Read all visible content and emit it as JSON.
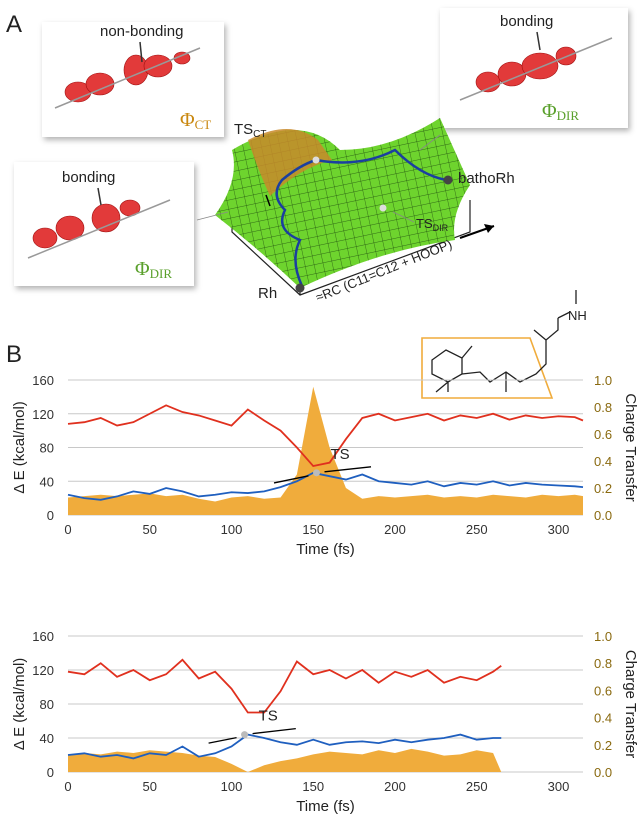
{
  "figure": {
    "panel_a": {
      "label": "A",
      "orbital_ct_note": "non-bonding",
      "orbital_ct_symbol": "Φ",
      "orbital_ct_sub": "CT",
      "orbital_dir_note_right": "bonding",
      "orbital_dir_symbol_right": "Φ",
      "orbital_dir_sub_right": "DIR",
      "orbital_dir_note_left": "bonding",
      "orbital_dir_symbol_left": "Φ",
      "orbital_dir_sub_left": "DIR",
      "ts_ct": "TS",
      "ts_ct_sub": "CT",
      "product": "bathoRh",
      "ts_dir": "TS",
      "ts_dir_sub": "DIR",
      "reactant": "Rh",
      "coordinate": "≈RC (C11=C12 + HOOP)"
    },
    "panel_b": {
      "label": "B",
      "molecule_group": "NH"
    }
  },
  "chart_data": [
    {
      "type": "line",
      "xlabel": "Time (fs)",
      "ylabel": "Δ E (kcal/mol)",
      "y2label": "Charge Transfer",
      "annotation": "TS",
      "x": [
        0,
        10,
        20,
        30,
        40,
        50,
        60,
        70,
        80,
        90,
        100,
        110,
        120,
        130,
        140,
        150,
        160,
        170,
        180,
        190,
        200,
        210,
        220,
        230,
        240,
        250,
        260,
        270,
        280,
        290,
        300,
        310,
        315
      ],
      "xlim": [
        0,
        315
      ],
      "xticks": [
        0,
        50,
        100,
        150,
        200,
        250,
        300
      ],
      "ylim": [
        0,
        160
      ],
      "yticks": [
        0,
        40,
        80,
        120,
        160
      ],
      "y2lim": [
        0,
        1
      ],
      "y2ticks": [
        {
          "value": 0,
          "label": "0.0"
        },
        {
          "value": 0.2,
          "label": "0.2"
        },
        {
          "value": 0.4,
          "label": "0.4"
        },
        {
          "value": 0.6,
          "label": "0.6"
        },
        {
          "value": 0.8,
          "label": "0.8"
        },
        {
          "value": 1,
          "label": "1.0"
        }
      ],
      "grid": true,
      "series": [
        {
          "color": "#f0ac3c",
          "axis": "y2",
          "area": true,
          "values": [
            0.13,
            0.14,
            0.15,
            0.14,
            0.15,
            0.16,
            0.14,
            0.15,
            0.12,
            0.1,
            0.13,
            0.14,
            0.12,
            0.13,
            0.3,
            0.95,
            0.5,
            0.2,
            0.12,
            0.14,
            0.13,
            0.14,
            0.15,
            0.13,
            0.14,
            0.13,
            0.15,
            0.14,
            0.13,
            0.15,
            0.14,
            0.15,
            0.14
          ]
        },
        {
          "color": "#e0301e",
          "values": [
            108,
            110,
            115,
            106,
            110,
            120,
            130,
            122,
            118,
            112,
            106,
            125,
            112,
            100,
            80,
            58,
            62,
            90,
            115,
            120,
            112,
            116,
            120,
            112,
            118,
            115,
            120,
            113,
            118,
            115,
            117,
            116,
            112
          ]
        },
        {
          "color": "#1f5fbf",
          "values": [
            24,
            20,
            18,
            22,
            28,
            25,
            32,
            28,
            22,
            24,
            27,
            26,
            28,
            33,
            40,
            50,
            46,
            42,
            48,
            40,
            38,
            36,
            40,
            34,
            38,
            36,
            40,
            35,
            38,
            36,
            35,
            34,
            33
          ]
        }
      ]
    },
    {
      "type": "line",
      "xlabel": "Time (fs)",
      "ylabel": "Δ E (kcal/mol)",
      "y2label": "Charge Transfer",
      "annotation": "TS",
      "x": [
        0,
        10,
        20,
        30,
        40,
        50,
        60,
        70,
        80,
        90,
        100,
        110,
        120,
        130,
        140,
        150,
        160,
        170,
        180,
        190,
        200,
        210,
        220,
        230,
        240,
        250,
        260,
        265
      ],
      "xlim": [
        0,
        315
      ],
      "xticks": [
        0,
        50,
        100,
        150,
        200,
        250,
        300
      ],
      "ylim": [
        0,
        160
      ],
      "yticks": [
        0,
        40,
        80,
        120,
        160
      ],
      "y2lim": [
        0,
        1
      ],
      "y2ticks": [
        {
          "value": 0,
          "label": "0.0"
        },
        {
          "value": 0.2,
          "label": "0.2"
        },
        {
          "value": 0.4,
          "label": "0.4"
        },
        {
          "value": 0.6,
          "label": "0.6"
        },
        {
          "value": 0.8,
          "label": "0.8"
        },
        {
          "value": 1,
          "label": "1.0"
        }
      ],
      "grid": true,
      "series": [
        {
          "color": "#f0ac3c",
          "axis": "y2",
          "area": true,
          "values": [
            0.13,
            0.14,
            0.13,
            0.15,
            0.14,
            0.16,
            0.15,
            0.14,
            0.12,
            0.11,
            0.06,
            0,
            0.05,
            0.08,
            0.1,
            0.13,
            0.15,
            0.14,
            0.13,
            0.16,
            0.14,
            0.17,
            0.15,
            0.12,
            0.13,
            0.16,
            0.14,
            0
          ]
        },
        {
          "color": "#e0301e",
          "values": [
            118,
            115,
            128,
            112,
            120,
            108,
            115,
            132,
            110,
            118,
            98,
            70,
            70,
            95,
            130,
            115,
            120,
            110,
            120,
            105,
            118,
            112,
            120,
            105,
            112,
            108,
            118,
            125
          ]
        },
        {
          "color": "#1f5fbf",
          "values": [
            20,
            22,
            18,
            20,
            16,
            22,
            20,
            30,
            18,
            22,
            30,
            44,
            40,
            35,
            32,
            38,
            32,
            35,
            36,
            34,
            38,
            35,
            38,
            40,
            44,
            38,
            40,
            40
          ]
        }
      ]
    }
  ]
}
